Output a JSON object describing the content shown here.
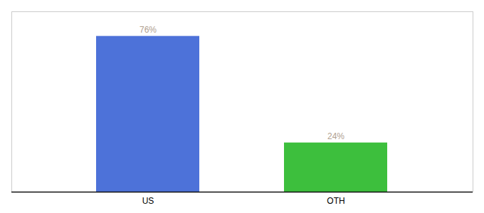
{
  "chart_data": {
    "type": "bar",
    "categories": [
      "US",
      "OTH"
    ],
    "values": [
      76,
      24
    ],
    "value_labels": [
      "76%",
      "24%"
    ],
    "colors": [
      "#4d72d9",
      "#3dbf3d"
    ],
    "ylim": [
      0,
      88
    ],
    "data_labels": true,
    "tick_labels": "x",
    "grid": false
  }
}
